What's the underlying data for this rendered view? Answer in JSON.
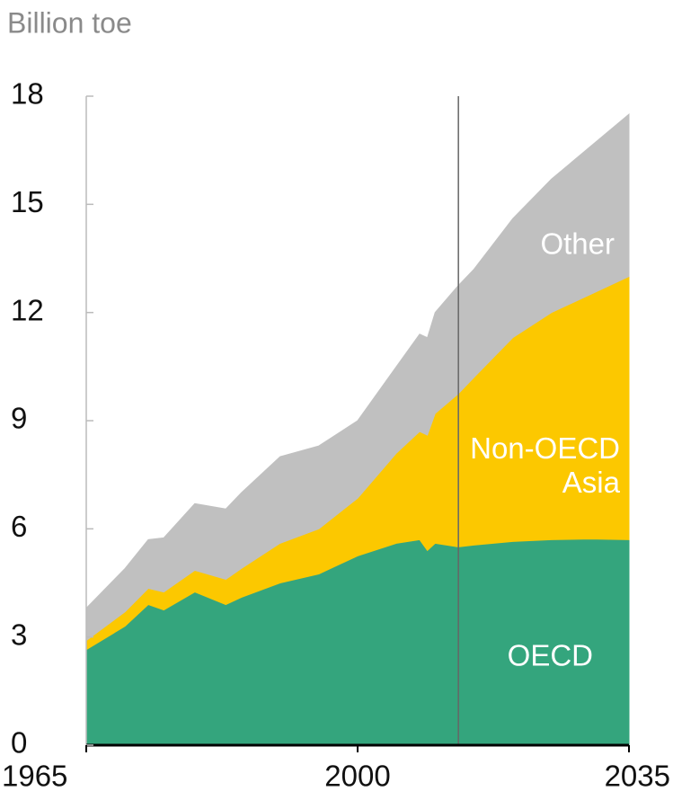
{
  "chart_data": {
    "type": "stacked_area",
    "y_axis_label": "Billion toe",
    "x": [
      1965,
      1970,
      1973,
      1975,
      1979,
      1983,
      1985,
      1990,
      1995,
      2000,
      2005,
      2008,
      2009,
      2010,
      2013,
      2015,
      2020,
      2025,
      2030,
      2035
    ],
    "series": [
      {
        "name": "OECD",
        "color": "#34a57d",
        "values": [
          2.65,
          3.3,
          3.9,
          3.75,
          4.25,
          3.9,
          4.1,
          4.5,
          4.75,
          5.25,
          5.6,
          5.7,
          5.4,
          5.6,
          5.5,
          5.55,
          5.65,
          5.7,
          5.72,
          5.7
        ]
      },
      {
        "name": "Non-OECD Asia",
        "color": "#fcc800",
        "values": [
          0.25,
          0.4,
          0.45,
          0.5,
          0.6,
          0.7,
          0.8,
          1.1,
          1.25,
          1.6,
          2.5,
          3.0,
          3.2,
          3.6,
          4.25,
          4.65,
          5.65,
          6.3,
          6.78,
          7.3
        ]
      },
      {
        "name": "Other",
        "color": "#c0c0c0",
        "values": [
          0.9,
          1.2,
          1.35,
          1.5,
          1.85,
          1.95,
          2.1,
          2.4,
          2.3,
          2.15,
          2.4,
          2.7,
          2.7,
          2.8,
          3.0,
          3.0,
          3.3,
          3.7,
          4.1,
          4.5
        ]
      }
    ],
    "xlim": [
      1965,
      2035
    ],
    "xticks": [
      1965,
      2000,
      2035
    ],
    "ylim": [
      0,
      18
    ],
    "yticks": [
      0,
      3,
      6,
      9,
      12,
      15,
      18
    ],
    "forecast_start": 2013
  }
}
